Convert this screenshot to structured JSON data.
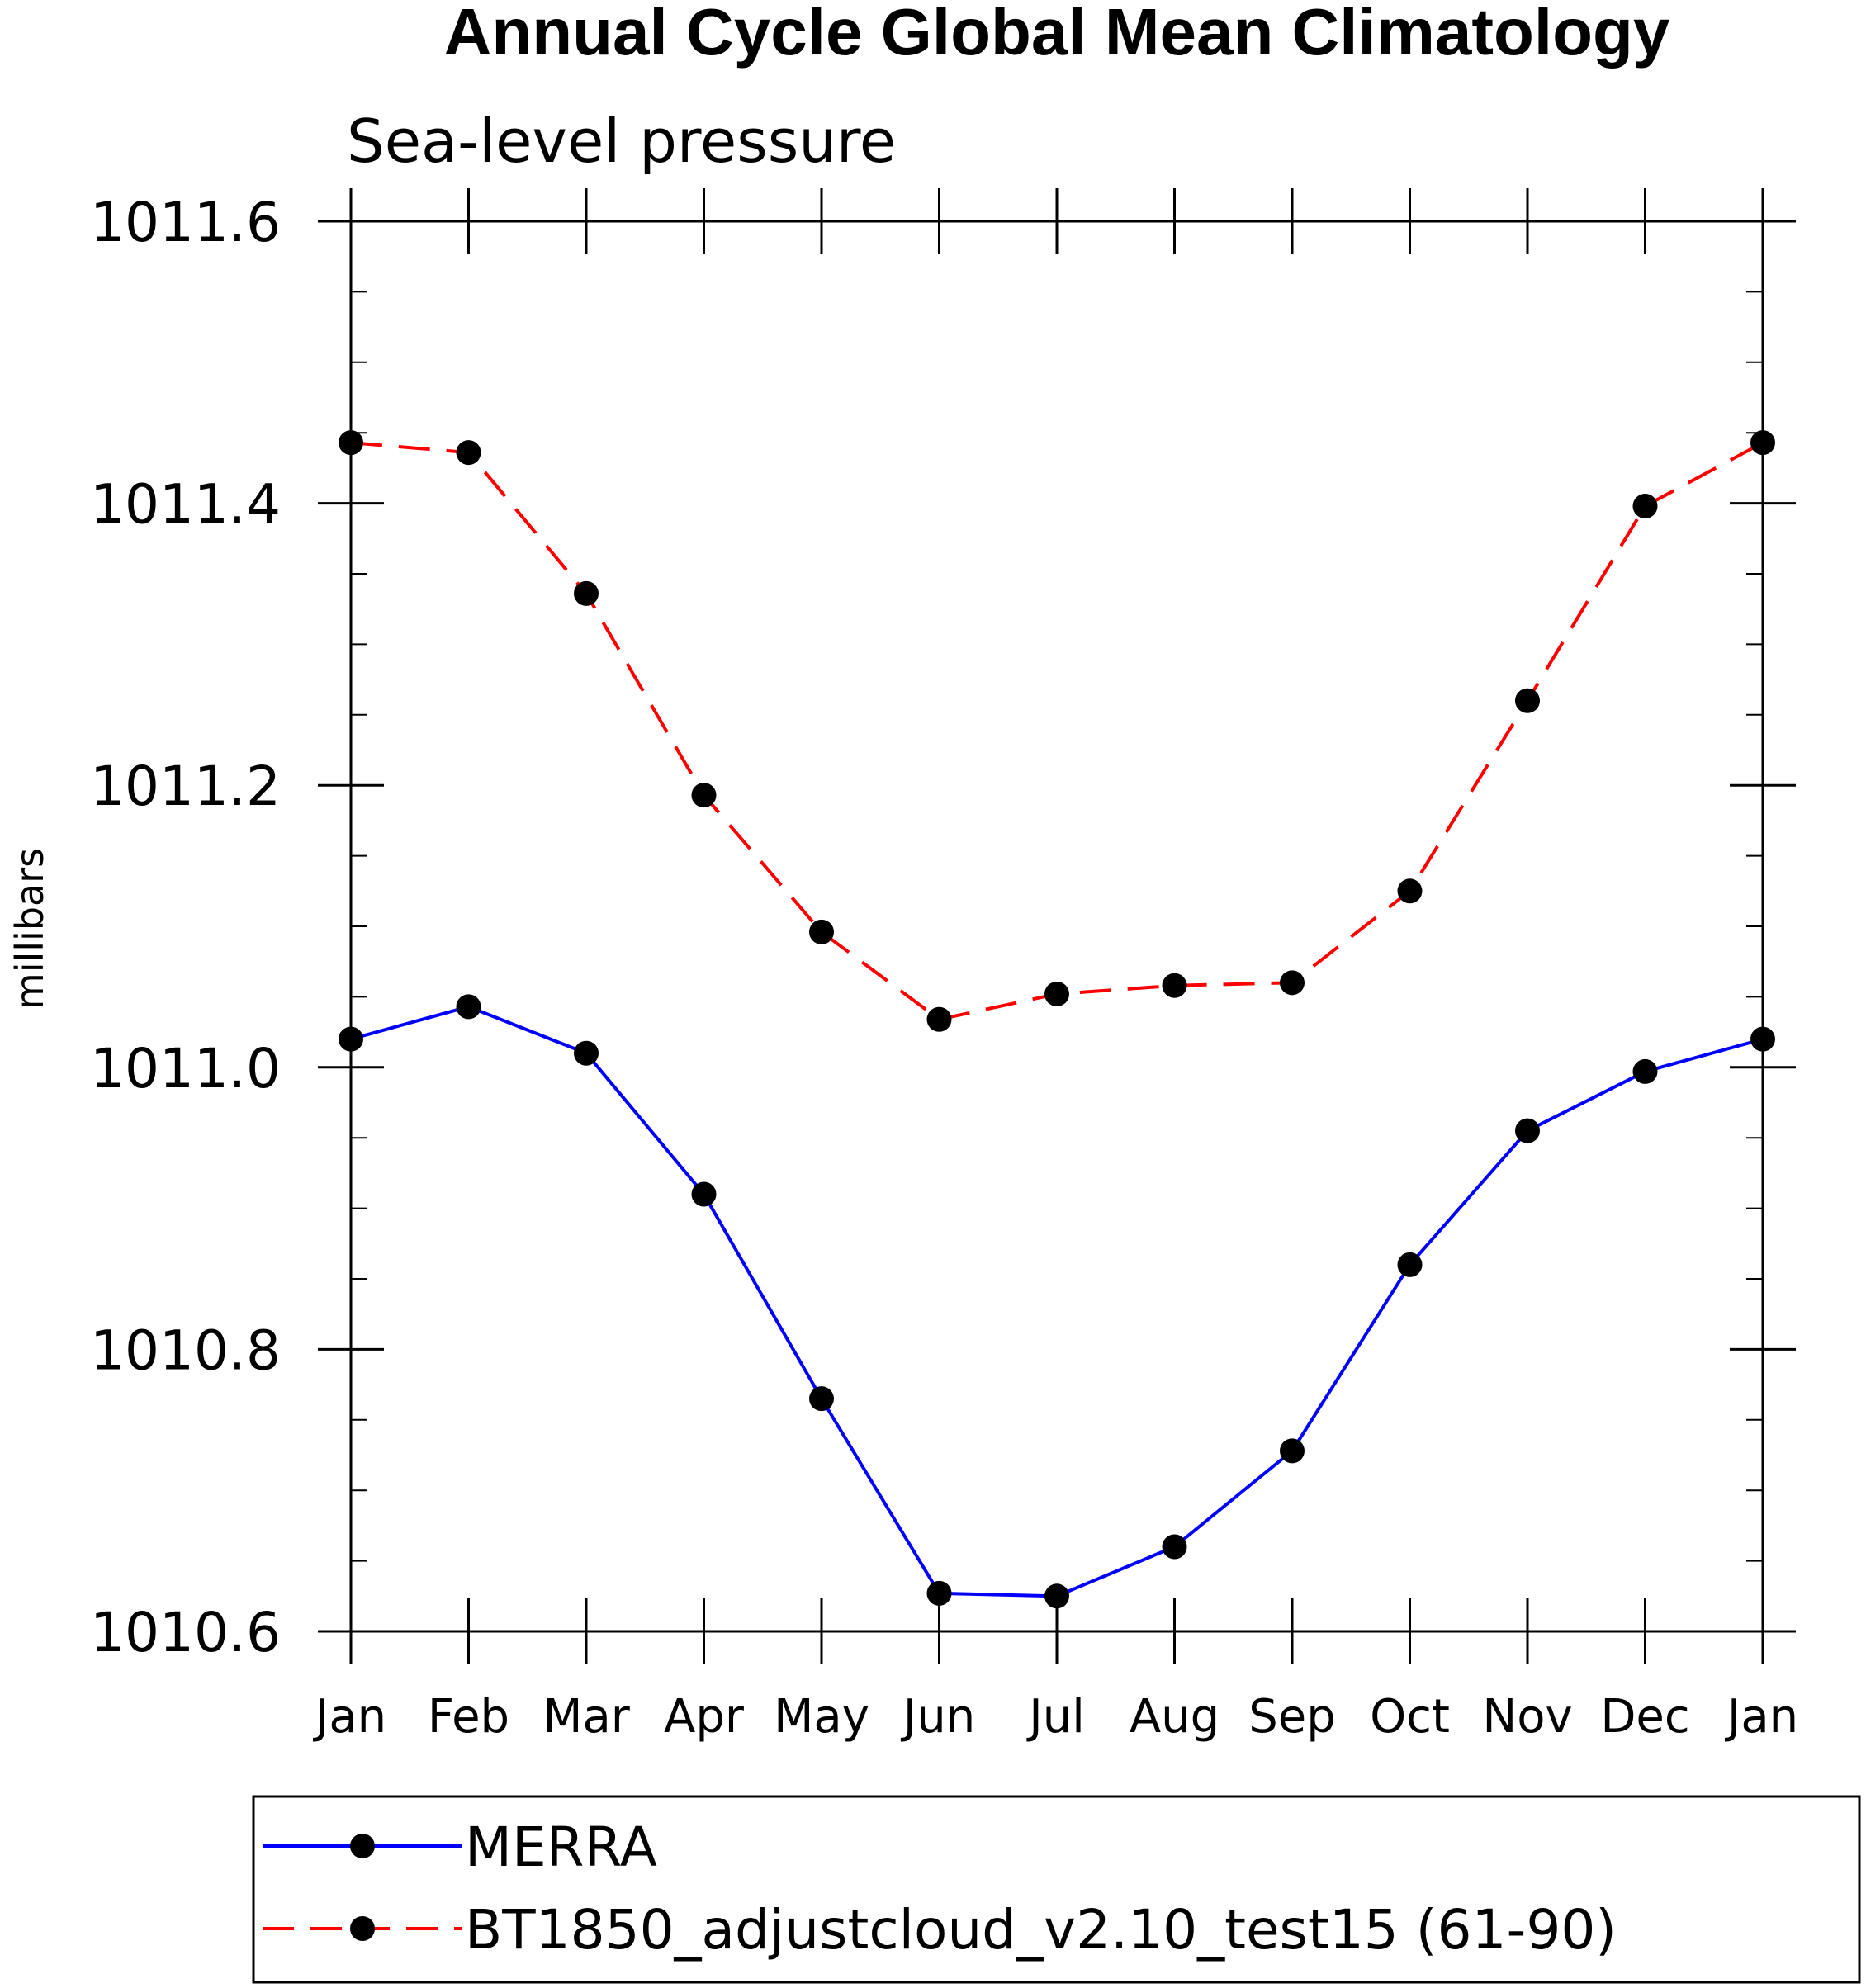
{
  "chart_data": {
    "type": "line",
    "title": "Annual Cycle Global Mean Climatology",
    "subtitle": "Sea-level pressure",
    "ylabel": "millibars",
    "xlabel": "",
    "categories": [
      "Jan",
      "Feb",
      "Mar",
      "Apr",
      "May",
      "Jun",
      "Jul",
      "Aug",
      "Sep",
      "Oct",
      "Nov",
      "Dec",
      "Jan"
    ],
    "ylim": [
      1010.6,
      1011.6
    ],
    "yticks": [
      "1010.6",
      "1010.8",
      "1011.0",
      "1011.2",
      "1011.4",
      "1011.6"
    ],
    "grid": false,
    "legend_position": "bottom",
    "series": [
      {
        "name": "MERRA",
        "color": "#0000ff",
        "dash": "solid",
        "marker": "filled-circle",
        "values": [
          1011.02,
          1011.043,
          1011.01,
          1010.91,
          1010.765,
          1010.627,
          1010.625,
          1010.66,
          1010.728,
          1010.86,
          1010.955,
          1010.997,
          1011.02
        ]
      },
      {
        "name": "BT1850_adjustcloud_v2.10_test15 (61-90)",
        "color": "#ff0000",
        "dash": "dashed",
        "marker": "filled-circle",
        "values": [
          1011.443,
          1011.436,
          1011.336,
          1011.193,
          1011.096,
          1011.034,
          1011.052,
          1011.058,
          1011.06,
          1011.125,
          1011.26,
          1011.398,
          1011.443
        ]
      }
    ]
  }
}
